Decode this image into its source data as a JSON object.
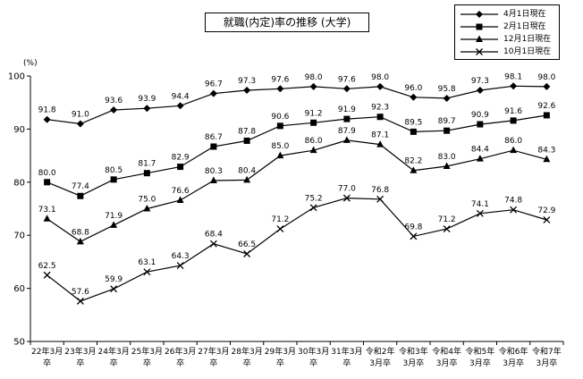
{
  "chart_data": {
    "type": "line",
    "title": "就職(内定)率の推移 (大学)",
    "yunit": "(%)",
    "ylim": [
      50,
      100
    ],
    "yticks": [
      50,
      60,
      70,
      80,
      90,
      100
    ],
    "grid": false,
    "legend_placement": "top-right",
    "categories": [
      [
        "22年3月",
        "卒"
      ],
      [
        "23年3月",
        "卒"
      ],
      [
        "24年3月",
        "卒"
      ],
      [
        "25年3月",
        "卒"
      ],
      [
        "26年3月",
        "卒"
      ],
      [
        "27年3月",
        "卒"
      ],
      [
        "28年3月",
        "卒"
      ],
      [
        "29年3月",
        "卒"
      ],
      [
        "30年3月",
        "卒"
      ],
      [
        "31年3月",
        "卒"
      ],
      [
        "令和2年",
        "3月卒"
      ],
      [
        "令和3年",
        "3月卒"
      ],
      [
        "令和4年",
        "3月卒"
      ],
      [
        "令和5年",
        "3月卒"
      ],
      [
        "令和6年",
        "3月卒"
      ],
      [
        "令和7年",
        "3月卒"
      ]
    ],
    "series": [
      {
        "name": "4月1日現在",
        "marker": "diamond",
        "values": [
          91.8,
          91.0,
          93.6,
          93.9,
          94.4,
          96.7,
          97.3,
          97.6,
          98.0,
          97.6,
          98.0,
          96.0,
          95.8,
          97.3,
          98.1,
          98.0
        ]
      },
      {
        "name": "2月1日現在",
        "marker": "square",
        "values": [
          80.0,
          77.4,
          80.5,
          81.7,
          82.9,
          86.7,
          87.8,
          90.6,
          91.2,
          91.9,
          92.3,
          89.5,
          89.7,
          90.9,
          91.6,
          92.6
        ]
      },
      {
        "name": "12月1日現在",
        "marker": "triangle",
        "values": [
          73.1,
          68.8,
          71.9,
          75.0,
          76.6,
          80.3,
          80.4,
          85.0,
          86.0,
          87.9,
          87.1,
          82.2,
          83.0,
          84.4,
          86.0,
          84.3
        ]
      },
      {
        "name": "10月1日現在",
        "marker": "x",
        "values": [
          62.5,
          57.6,
          59.9,
          63.1,
          64.3,
          68.4,
          66.5,
          71.2,
          75.2,
          77.0,
          76.8,
          69.8,
          71.2,
          74.1,
          74.8,
          72.9
        ]
      }
    ]
  }
}
